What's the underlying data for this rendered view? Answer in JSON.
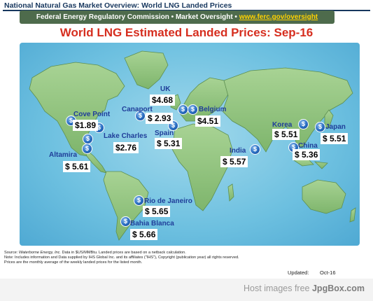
{
  "header": {
    "title": "National Natural Gas Market Overview: World LNG Landed Prices"
  },
  "banner": {
    "text": "Federal Energy Regulatory Commission • Market Oversight • ",
    "url": "www.ferc.gov/oversight"
  },
  "map_title": "World LNG Estimated Landed Prices: Sep-16",
  "pin_symbol": "$",
  "locations": [
    {
      "name": "UK",
      "price": "$4.68"
    },
    {
      "name": "Belgium",
      "price": "$4.51"
    },
    {
      "name": "Cove Point",
      "price": "$1.89"
    },
    {
      "name": "Canaport",
      "price": "$ 2.93"
    },
    {
      "name": "Lake Charles",
      "price": "$2.76"
    },
    {
      "name": "Spain",
      "price": "$ 5.31"
    },
    {
      "name": "Altamira",
      "price": "$ 5.61"
    },
    {
      "name": "India",
      "price": "$ 5.57"
    },
    {
      "name": "Korea",
      "price": "$ 5.51"
    },
    {
      "name": "Japan",
      "price": "$ 5.51"
    },
    {
      "name": "China",
      "price": "$ 5.36"
    },
    {
      "name": "Rio de Janeiro",
      "price": "$ 5.65"
    },
    {
      "name": "Bahia Blanca",
      "price": "$ 5.66"
    }
  ],
  "footnotes": {
    "source_label": "Source: ",
    "source_name": "Waterborne Energy, Inc.",
    "source_rest": " Data in $US/MMBtu. Landed prices are based on a netback calculation.",
    "note": "Note: Includes information and Data supplied by IHS Global Inc. and its affiliates (\"IHS\"), Copyright (publication year) all rights reserved.",
    "prices": "Prices are the monthly average of the weekly landed prices for the listed month."
  },
  "updated": {
    "label": "Updated:",
    "value": "Oct-16"
  },
  "watermark": {
    "text": "Host images free ",
    "brand": "JpgBox.com"
  },
  "colors": {
    "title_red": "#d62e1f",
    "banner_green": "#4e6b4c",
    "url_yellow": "#ffd200",
    "header_navy": "#17375e",
    "label_blue": "#1f3d99",
    "land_green": "#8fc17f",
    "ocean_blue": "#6dc0e0"
  }
}
